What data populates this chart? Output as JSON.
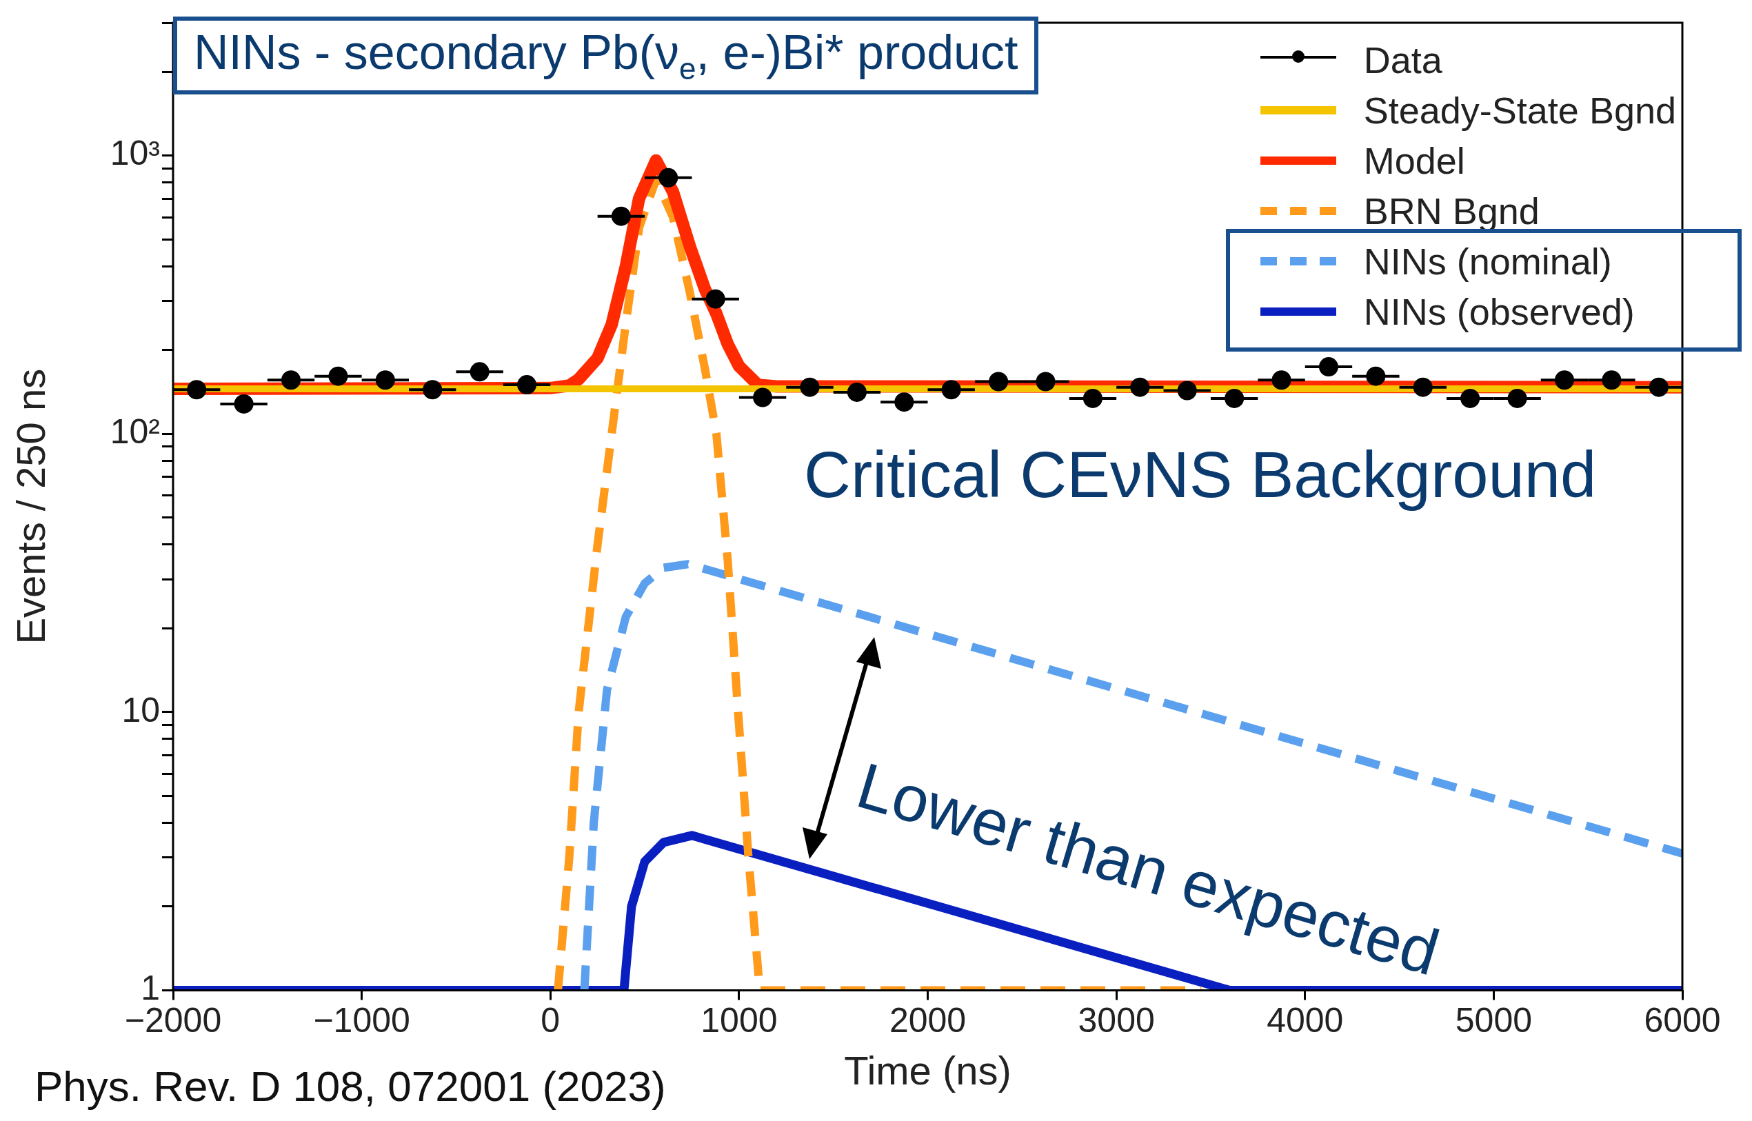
{
  "chart_data": {
    "type": "line",
    "title": "NINs - secondary Pb(ν$_{e}$, e-)Bi* product",
    "xlabel": "Time (ns)",
    "ylabel": "Events / 250 ns",
    "annotations": [
      "Critical CEνNS Background",
      "Lower than expected",
      "Phys. Rev. D 108, 072001 (2023)"
    ],
    "xlim": [
      -2000,
      6000
    ],
    "xticks": [
      -2000,
      -1000,
      0,
      1000,
      2000,
      3000,
      4000,
      5000,
      6000
    ],
    "ylim": [
      1,
      3000
    ],
    "yticks": [
      1,
      {
        "value": 2,
        "label": null
      },
      {
        "value": 3,
        "label": null
      },
      {
        "value": 4,
        "label": null
      },
      {
        "value": 5,
        "label": null
      },
      {
        "value": 6,
        "label": null
      },
      {
        "value": 7,
        "label": null
      },
      {
        "value": 8,
        "label": null
      },
      {
        "value": 9,
        "label": null
      },
      10,
      {
        "value": 20,
        "label": null
      },
      {
        "value": 30,
        "label": null
      },
      {
        "value": 40,
        "label": null
      },
      {
        "value": 50,
        "label": null
      },
      {
        "value": 60,
        "label": null
      },
      {
        "value": 70,
        "label": null
      },
      {
        "value": 80,
        "label": null
      },
      {
        "value": 90,
        "label": null
      },
      {
        "value": 100,
        "label": "10²"
      },
      {
        "value": 200,
        "label": null
      },
      {
        "value": 300,
        "label": null
      },
      {
        "value": 400,
        "label": null
      },
      {
        "value": 500,
        "label": null
      },
      {
        "value": 600,
        "label": null
      },
      {
        "value": 700,
        "label": null
      },
      {
        "value": 800,
        "label": null
      },
      {
        "value": 900,
        "label": null
      },
      {
        "value": 1000,
        "label": "10³"
      },
      {
        "value": 2000,
        "label": null
      },
      {
        "value": 3000,
        "label": null
      }
    ],
    "log": "y",
    "grid": false,
    "legend": "top right",
    "series": [
      {
        "name": "Data",
        "type": "scatter",
        "color": "#000000",
        "marker": "circle",
        "x": [
          -1875,
          -1625,
          -1375,
          -1125,
          -875,
          -625,
          -375,
          -125,
          375,
          625,
          875,
          1125,
          1375,
          1625,
          1875,
          2125,
          2375,
          2625,
          2875,
          3125,
          3375,
          3625,
          3875,
          4125,
          4375,
          4625,
          4875,
          5125,
          5375,
          5625,
          5875
        ],
        "values": [
          144,
          128,
          156,
          161,
          156,
          144,
          167,
          150,
          605,
          832,
          305,
          135,
          147,
          141,
          130,
          144,
          154,
          154,
          134,
          147,
          143,
          134,
          156,
          174,
          161,
          147,
          134,
          134,
          156,
          156,
          147
        ],
        "xerrors": [
          125,
          125,
          125,
          125,
          125,
          125,
          125,
          125,
          125,
          125,
          125,
          125,
          125,
          125,
          125,
          125,
          125,
          125,
          125,
          125,
          125,
          125,
          125,
          125,
          125,
          125,
          125,
          125,
          125,
          125,
          125
        ]
      },
      {
        "name": "Steady-State Bgnd",
        "color": "#f5c400",
        "line_style": "solid",
        "marker": "none",
        "x": [
          -2000,
          6000
        ],
        "values": [
          145,
          145
        ]
      },
      {
        "name": "Model",
        "color": "#ff2a00",
        "line_style": "solid",
        "marker": "none",
        "x": [
          -2000,
          0,
          100,
          150,
          250,
          325,
          400,
          470,
          560,
          650,
          740,
          820,
          880,
          940,
          1000,
          1100,
          1200,
          6000
        ],
        "values": [
          145,
          146,
          149,
          157,
          187,
          247,
          400,
          700,
          960,
          740,
          470,
          330,
          270,
          210,
          175,
          150,
          148,
          147
        ]
      },
      {
        "name": "BRN Bgnd",
        "color": "#ff9a1a",
        "line_style": "dashed",
        "marker": "none",
        "x": [
          40,
          100,
          150,
          250,
          325,
          400,
          470,
          560,
          650,
          740,
          820,
          880,
          940,
          995,
          1050,
          1110,
          3450
        ],
        "values": [
          1,
          3,
          10,
          40,
          100,
          250,
          550,
          820,
          600,
          320,
          170,
          100,
          35,
          10,
          3,
          1,
          1
        ]
      },
      {
        "name": "NINs (nominal)",
        "color": "#5aa0ee",
        "line_style": "dashed",
        "marker": "none",
        "x": [
          180,
          230,
          300,
          400,
          500,
          600,
          730,
          6000
        ],
        "values": [
          1,
          4,
          12,
          22,
          29,
          33,
          34,
          3.1
        ]
      },
      {
        "name": "NINs (observed)",
        "color": "#0a1fc0",
        "line_style": "solid",
        "marker": "none",
        "x": [
          -2000,
          390,
          430,
          500,
          600,
          750,
          3600,
          6000
        ],
        "values": [
          1,
          1,
          2,
          2.9,
          3.4,
          3.6,
          1,
          1
        ]
      }
    ]
  }
}
